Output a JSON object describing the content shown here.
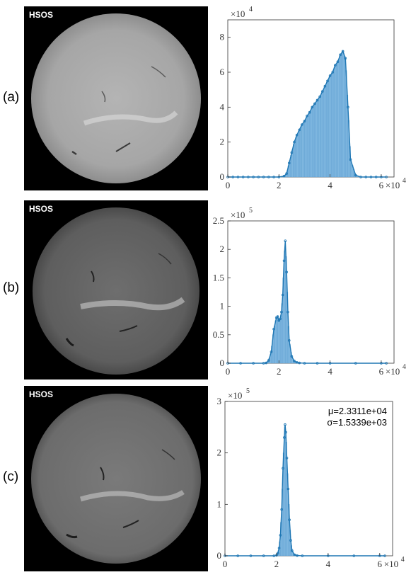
{
  "panels": [
    {
      "label": "(a)",
      "image_label": "HSOS"
    },
    {
      "label": "(b)",
      "image_label": "HSOS"
    },
    {
      "label": "(c)",
      "image_label": "HSOS"
    }
  ],
  "colors": {
    "bars": "#7fb7e0",
    "bar_edge": "#4a90c8",
    "line": "#1f77b4",
    "axis": "#333333"
  },
  "chart_data": [
    {
      "type": "bar",
      "panel": "(a)",
      "xlim": [
        0,
        65000
      ],
      "ylim": [
        0,
        90000
      ],
      "x_ticks": [
        {
          "v": 0,
          "label": "0"
        },
        {
          "v": 20000,
          "label": "2"
        },
        {
          "v": 40000,
          "label": "4"
        },
        {
          "v": 60000,
          "label": "6"
        }
      ],
      "x_multiplier": "×10",
      "x_exponent": "4",
      "y_ticks": [
        {
          "v": 0,
          "label": "0"
        },
        {
          "v": 20000,
          "label": "2"
        },
        {
          "v": 40000,
          "label": "4"
        },
        {
          "v": 60000,
          "label": "6"
        },
        {
          "v": 80000,
          "label": "8"
        }
      ],
      "y_multiplier": "×10",
      "y_exponent": "4",
      "annotation": [],
      "x": [
        0,
        2000,
        4000,
        6000,
        8000,
        10000,
        12000,
        14000,
        16000,
        18000,
        20000,
        22000,
        23000,
        24000,
        25000,
        26000,
        27000,
        28000,
        29000,
        30000,
        31000,
        32000,
        33000,
        34000,
        35000,
        36000,
        37000,
        38000,
        39000,
        40000,
        41000,
        42000,
        43000,
        44000,
        45000,
        46000,
        47000,
        48000,
        50000,
        52000,
        54000,
        56000,
        58000,
        60000,
        62000
      ],
      "values": [
        0,
        0,
        0,
        0,
        0,
        0,
        0,
        0,
        0,
        0,
        0,
        500,
        2000,
        8000,
        14000,
        20000,
        24000,
        27000,
        30000,
        32000,
        35000,
        37000,
        40000,
        42000,
        44000,
        46000,
        49000,
        52000,
        55000,
        58000,
        60000,
        64000,
        66000,
        70000,
        72000,
        68000,
        40000,
        10000,
        1000,
        0,
        0,
        0,
        0,
        0,
        0
      ]
    },
    {
      "type": "bar",
      "panel": "(b)",
      "xlim": [
        0,
        65000
      ],
      "ylim": [
        0,
        250000
      ],
      "x_ticks": [
        {
          "v": 0,
          "label": "0"
        },
        {
          "v": 20000,
          "label": "2"
        },
        {
          "v": 40000,
          "label": "4"
        },
        {
          "v": 60000,
          "label": "6"
        }
      ],
      "x_multiplier": "×10",
      "x_exponent": "4",
      "y_ticks": [
        {
          "v": 0,
          "label": "0"
        },
        {
          "v": 50000,
          "label": "0.5"
        },
        {
          "v": 100000,
          "label": "1"
        },
        {
          "v": 150000,
          "label": "1.5"
        },
        {
          "v": 200000,
          "label": "2"
        },
        {
          "v": 250000,
          "label": "2.5"
        }
      ],
      "y_multiplier": "×10",
      "y_exponent": "5",
      "annotation": [],
      "x": [
        0,
        5000,
        10000,
        14000,
        15000,
        16000,
        17000,
        18000,
        19000,
        19500,
        20000,
        20500,
        21000,
        21500,
        22000,
        22500,
        23000,
        23500,
        24000,
        25000,
        26000,
        27000,
        28000,
        30000,
        35000,
        40000,
        50000,
        60000,
        62000
      ],
      "values": [
        0,
        0,
        0,
        0,
        500,
        5000,
        20000,
        60000,
        80000,
        82000,
        75000,
        78000,
        90000,
        120000,
        180000,
        215000,
        160000,
        90000,
        40000,
        12000,
        4000,
        1500,
        500,
        0,
        0,
        0,
        0,
        0,
        0
      ]
    },
    {
      "type": "bar",
      "panel": "(c)",
      "xlim": [
        0,
        65000
      ],
      "ylim": [
        0,
        300000
      ],
      "x_ticks": [
        {
          "v": 0,
          "label": "0"
        },
        {
          "v": 20000,
          "label": "2"
        },
        {
          "v": 40000,
          "label": "4"
        },
        {
          "v": 60000,
          "label": "6"
        }
      ],
      "x_multiplier": "×10",
      "x_exponent": "4",
      "y_ticks": [
        {
          "v": 0,
          "label": "0"
        },
        {
          "v": 100000,
          "label": "1"
        },
        {
          "v": 200000,
          "label": "2"
        },
        {
          "v": 300000,
          "label": "3"
        }
      ],
      "y_multiplier": "×10",
      "y_exponent": "5",
      "annotation": [
        "μ=2.3311e+04",
        "σ=1.5339e+03"
      ],
      "x": [
        0,
        5000,
        10000,
        15000,
        19000,
        20000,
        20500,
        21000,
        21500,
        22000,
        22500,
        23000,
        23300,
        23600,
        24000,
        24500,
        25000,
        25500,
        26000,
        27000,
        28000,
        30000,
        40000,
        50000,
        60000,
        62000
      ],
      "values": [
        0,
        0,
        0,
        0,
        0,
        1000,
        5000,
        15000,
        40000,
        90000,
        170000,
        230000,
        255000,
        240000,
        190000,
        130000,
        70000,
        30000,
        10000,
        2000,
        500,
        0,
        0,
        0,
        0,
        0
      ]
    }
  ]
}
